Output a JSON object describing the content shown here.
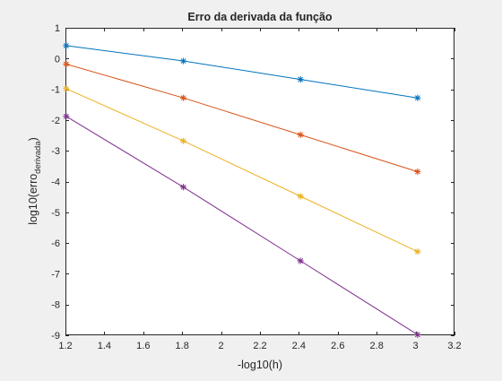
{
  "chart_data": {
    "type": "line",
    "title": "Erro da derivada da função",
    "xlabel": "-log10(h)",
    "ylabel": {
      "base": "log10(erro",
      "subscript": "derivada",
      "suffix": ")"
    },
    "xlim": [
      1.2,
      3.2
    ],
    "ylim": [
      -9,
      1
    ],
    "xticks": [
      "1.2",
      "1.4",
      "1.6",
      "1.8",
      "2",
      "2.2",
      "2.4",
      "2.6",
      "2.8",
      "3",
      "3.2"
    ],
    "yticks": [
      "1",
      "0",
      "-1",
      "-2",
      "-3",
      "-4",
      "-5",
      "-6",
      "-7",
      "-8",
      "-9"
    ],
    "grid": false,
    "legend": "none",
    "marker": "asterisk",
    "x": [
      1.2041,
      1.8062,
      2.4082,
      3.0103
    ],
    "series": [
      {
        "color": "#0072BD",
        "values": [
          0.42,
          -0.08,
          -0.68,
          -1.28
        ]
      },
      {
        "color": "#D95319",
        "values": [
          -0.18,
          -1.28,
          -2.48,
          -3.68
        ]
      },
      {
        "color": "#EDB120",
        "values": [
          -0.98,
          -2.68,
          -4.48,
          -6.28
        ]
      },
      {
        "color": "#7E2F8E",
        "values": [
          -1.88,
          -4.18,
          -6.58,
          -8.98
        ]
      }
    ]
  }
}
